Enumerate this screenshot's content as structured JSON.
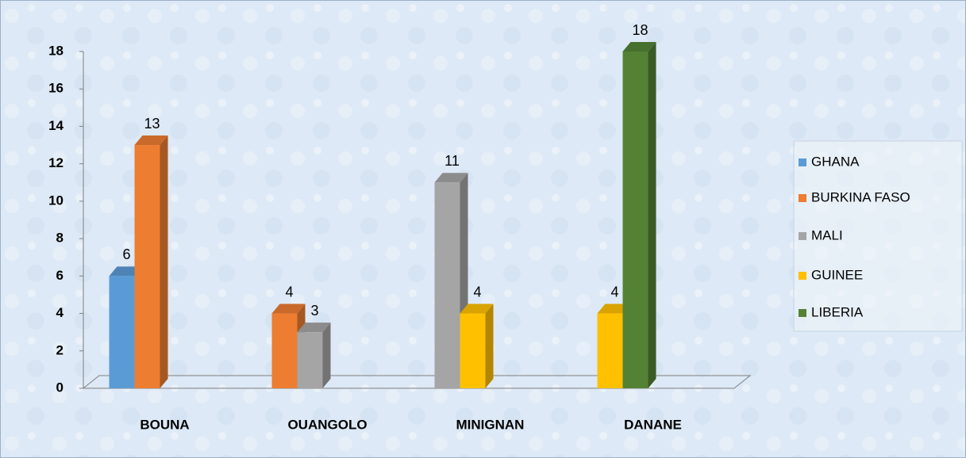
{
  "chart_data": {
    "type": "bar3d",
    "categories": [
      "BOUNA",
      "OUANGOLO",
      "MINIGNAN",
      "DANANE"
    ],
    "series": [
      {
        "name": "GHANA",
        "color": "#5b9bd5",
        "values": [
          6,
          null,
          null,
          null
        ]
      },
      {
        "name": "BURKINA FASO",
        "color": "#ed7d31",
        "values": [
          13,
          4,
          null,
          null
        ]
      },
      {
        "name": "MALI",
        "color": "#a5a5a5",
        "values": [
          null,
          3,
          11,
          null
        ]
      },
      {
        "name": "GUINEE",
        "color": "#ffc000",
        "values": [
          null,
          null,
          4,
          4
        ]
      },
      {
        "name": "LIBERIA",
        "color": "#548235",
        "values": [
          null,
          null,
          null,
          18
        ]
      }
    ],
    "ylim": [
      0,
      18
    ],
    "yticks": [
      0,
      2,
      4,
      6,
      8,
      10,
      12,
      14,
      16,
      18
    ],
    "legend": "right"
  }
}
